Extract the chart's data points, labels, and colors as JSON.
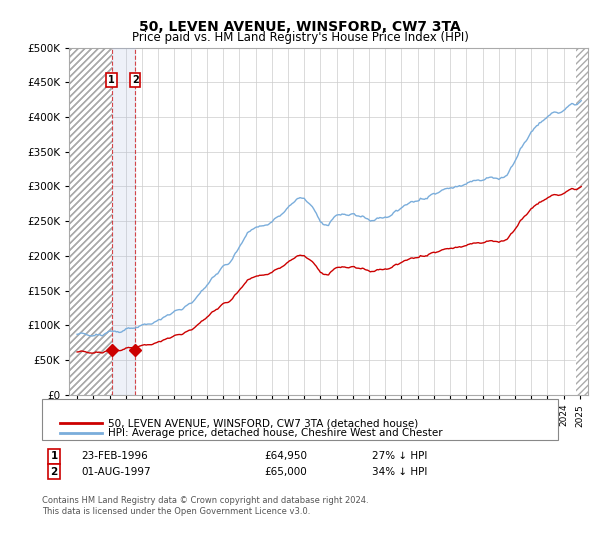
{
  "title": "50, LEVEN AVENUE, WINSFORD, CW7 3TA",
  "subtitle": "Price paid vs. HM Land Registry's House Price Index (HPI)",
  "legend_line1": "50, LEVEN AVENUE, WINSFORD, CW7 3TA (detached house)",
  "legend_line2": "HPI: Average price, detached house, Cheshire West and Chester",
  "sale1_date": 1996.13,
  "sale1_price": 64950,
  "sale2_date": 1997.58,
  "sale2_price": 65000,
  "red_line_color": "#cc0000",
  "blue_line_color": "#7aaddb",
  "footnote_line1": "Contains HM Land Registry data © Crown copyright and database right 2024.",
  "footnote_line2": "This data is licensed under the Open Government Licence v3.0.",
  "ylim_min": 0,
  "ylim_max": 500000,
  "xlim_min": 1993.5,
  "xlim_max": 2025.5,
  "hatch_right_start": 2024.75
}
